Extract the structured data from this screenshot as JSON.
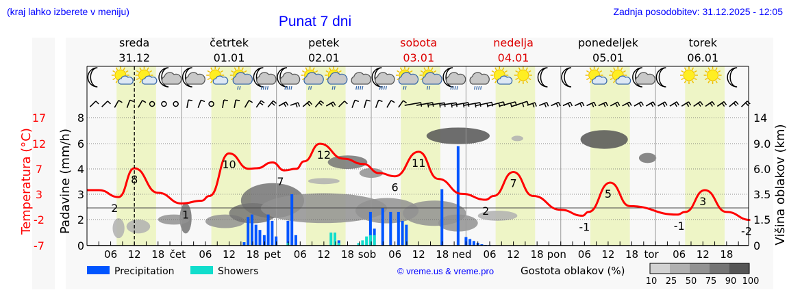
{
  "header": {
    "location_hint": "(kraj lahko izberete v meniju)",
    "title": "Punat 7 dni",
    "last_update": "Zadnja posodobitev: 31.12.2025 - 12:05"
  },
  "days": [
    {
      "name": "sreda",
      "date": "31.12",
      "weekend": false,
      "abbr": ""
    },
    {
      "name": "četrtek",
      "date": "01.01",
      "weekend": false,
      "abbr": "čet"
    },
    {
      "name": "petek",
      "date": "02.01",
      "weekend": false,
      "abbr": "pet"
    },
    {
      "name": "sobota",
      "date": "03.01",
      "weekend": true,
      "abbr": "sob"
    },
    {
      "name": "nedelja",
      "date": "04.01",
      "weekend": true,
      "abbr": "ned"
    },
    {
      "name": "ponedeljek",
      "date": "05.01",
      "weekend": false,
      "abbr": "pon"
    },
    {
      "name": "torek",
      "date": "06.01",
      "weekend": false,
      "abbr": "tor"
    }
  ],
  "hour_ticks": [
    "06",
    "12",
    "18"
  ],
  "icons": [
    "moon",
    "sun-cloud",
    "sun-cloud",
    "moon-cloud",
    "moon-cloud",
    "sun-cloud",
    "sun-cloud-rain",
    "moon-cloud-rain",
    "moon-cloud-rain",
    "sun-cloud-rain",
    "sun-cloud-rain",
    "cloud-rain",
    "moon-cloud-rain",
    "sun-cloud-rain",
    "sun-cloud-rain",
    "moon-cloud-rain",
    "cloud-sleet",
    "sun-cloud",
    "sun",
    "moon",
    "moon",
    "sun-cloud",
    "sun-cloud",
    "moon-cloud",
    "moon",
    "sun",
    "sun",
    "moon"
  ],
  "wind": [
    [
      45,
      10
    ],
    [
      45,
      10
    ],
    [
      30,
      10
    ],
    [
      20,
      10
    ],
    [
      30,
      5
    ],
    [
      0,
      0
    ],
    [
      0,
      0
    ],
    [
      0,
      0
    ],
    [
      10,
      10
    ],
    [
      20,
      5
    ],
    [
      0,
      0
    ],
    [
      10,
      10
    ],
    [
      10,
      10
    ],
    [
      30,
      10
    ],
    [
      35,
      15
    ],
    [
      40,
      15
    ],
    [
      60,
      15
    ],
    [
      70,
      15
    ],
    [
      50,
      15
    ],
    [
      40,
      15
    ],
    [
      60,
      15
    ],
    [
      45,
      10
    ],
    [
      20,
      10
    ],
    [
      15,
      10
    ],
    [
      20,
      10
    ],
    [
      30,
      10
    ],
    [
      35,
      10
    ],
    [
      80,
      10
    ],
    [
      80,
      15
    ],
    [
      82,
      15
    ],
    [
      82,
      15
    ],
    [
      80,
      15
    ],
    [
      80,
      15
    ],
    [
      78,
      15
    ],
    [
      75,
      15
    ],
    [
      75,
      15
    ],
    [
      72,
      15
    ],
    [
      70,
      15
    ],
    [
      68,
      15
    ],
    [
      65,
      15
    ],
    [
      65,
      15
    ],
    [
      65,
      15
    ],
    [
      65,
      15
    ],
    [
      65,
      15
    ],
    [
      62,
      15
    ],
    [
      62,
      15
    ],
    [
      60,
      15
    ],
    [
      60,
      15
    ],
    [
      60,
      15
    ],
    [
      58,
      15
    ],
    [
      58,
      15
    ],
    [
      55,
      15
    ],
    [
      55,
      15
    ],
    [
      55,
      15
    ],
    [
      50,
      15
    ],
    [
      45,
      15
    ]
  ],
  "current_time_hour": 12,
  "axes": {
    "temp_label": "Temperatura (°C)",
    "temp_ticks": [
      "17",
      "12",
      "7",
      "3",
      "-2",
      "-7"
    ],
    "precip_label": "Padavine (mm/h)",
    "precip_ticks": [
      "8",
      "6",
      "4",
      "3",
      "2",
      "0"
    ],
    "cloud_label": "Višina oblakov (km)",
    "cloud_ticks": [
      "14",
      "9.0",
      "6.0",
      "3.5",
      "1.5",
      "0"
    ]
  },
  "legend": {
    "precipitation": "Precipitation",
    "showers": "Showers",
    "copyright": "© vreme.us & vreme.pro",
    "cloud_density": "Gostota oblakov (%)",
    "density_levels": [
      "10",
      "25",
      "50",
      "75",
      "90",
      "100"
    ]
  },
  "colors": {
    "temperature": "#ff0000",
    "precipitation": "#0055ff",
    "showers": "#11ddcc",
    "daylight": "#eef5c6",
    "density": [
      "#d2d2d2",
      "#b0b0b0",
      "#929292",
      "#747474",
      "#555555"
    ]
  },
  "chart_data": {
    "type": "line",
    "x_unit": "hours from 31.12 00:00",
    "xlim": [
      0,
      168
    ],
    "temperature": {
      "h": [
        0,
        3,
        8,
        12,
        18,
        24,
        29,
        31,
        36,
        41,
        43,
        47,
        50,
        53,
        55,
        59,
        65,
        70,
        74,
        78,
        84,
        89,
        95,
        101,
        103,
        108,
        113,
        120,
        125.5,
        127,
        132.5,
        137.5,
        149.5,
        151.5,
        156.5,
        162,
        168
      ],
      "t": [
        3.4,
        3.4,
        2.1,
        7.5,
        2.9,
        0.9,
        1.4,
        2.3,
        10.3,
        7.4,
        7.5,
        8.6,
        7.1,
        7.4,
        8.8,
        12.1,
        9.3,
        8.3,
        6.6,
        6.0,
        10.6,
        5.5,
        2.7,
        1.6,
        2.3,
        6.8,
        2.3,
        -0.3,
        -1.4,
        -0.7,
        4.8,
        0.4,
        -1.2,
        -0.7,
        3.4,
        -0.7,
        -2.2
      ],
      "labels": [
        {
          "h": 7,
          "v": "2"
        },
        {
          "h": 12,
          "v": "8"
        },
        {
          "h": 25,
          "v": "1"
        },
        {
          "h": 36,
          "v": "10"
        },
        {
          "h": 49,
          "v": "7"
        },
        {
          "h": 60,
          "v": "12"
        },
        {
          "h": 78,
          "v": "6"
        },
        {
          "h": 84,
          "v": "11"
        },
        {
          "h": 101,
          "v": "2"
        },
        {
          "h": 108,
          "v": "7"
        },
        {
          "h": 126,
          "v": "-1"
        },
        {
          "h": 132,
          "v": "5"
        },
        {
          "h": 150,
          "v": "-1"
        },
        {
          "h": 156,
          "v": "3"
        },
        {
          "h": 168,
          "v": "-2"
        }
      ]
    },
    "precipitation": [
      [
        39.8,
        0.26
      ],
      [
        40.8,
        2.1
      ],
      [
        41.8,
        2.2
      ],
      [
        42.8,
        1.6
      ],
      [
        43.8,
        1.2
      ],
      [
        44.9,
        0.8
      ],
      [
        45.9,
        2.2
      ],
      [
        46.9,
        1.9
      ],
      [
        47.9,
        0.7
      ],
      [
        50.9,
        1.9
      ],
      [
        51.9,
        3.0
      ],
      [
        52.9,
        0.8
      ],
      [
        63.8,
        0.4
      ],
      [
        71.8,
        2.3
      ],
      [
        72.8,
        1.3
      ],
      [
        74.9,
        2.45
      ],
      [
        76.9,
        2.3
      ],
      [
        78.9,
        2.3
      ],
      [
        79.9,
        1.9
      ],
      [
        80.9,
        1.6
      ],
      [
        89.9,
        3.2
      ],
      [
        94,
        5.8
      ],
      [
        96,
        0.65
      ],
      [
        97,
        0.5
      ],
      [
        98,
        0.35
      ],
      [
        99,
        0.2
      ],
      [
        100,
        0.1
      ],
      [
        101,
        0.05
      ],
      [
        102,
        0.05
      ]
    ],
    "showers": [
      [
        50.9,
        0.2
      ],
      [
        61.8,
        1.0
      ],
      [
        62.8,
        1.0
      ],
      [
        63.8,
        0.2
      ],
      [
        68.8,
        0.2
      ],
      [
        69.8,
        0.4
      ],
      [
        70.8,
        0.7
      ],
      [
        71.8,
        0.8
      ],
      [
        72.8,
        0.8
      ]
    ],
    "clouds": [
      {
        "h": 8,
        "km": 1.0,
        "dh": 1.5,
        "dkm": 0.6,
        "d": 25
      },
      {
        "h": 13,
        "km": 1.1,
        "dh": 3,
        "dkm": 0.4,
        "d": 25
      },
      {
        "h": 25,
        "km": 1.6,
        "dh": 1.5,
        "dkm": 1.2,
        "d": 75
      },
      {
        "h": 22,
        "km": 1.5,
        "dh": 4,
        "dkm": 0.4,
        "d": 50
      },
      {
        "h": 35,
        "km": 1.4,
        "dh": 5,
        "dkm": 0.5,
        "d": 50
      },
      {
        "h": 47,
        "km": 3.0,
        "dh": 8,
        "dkm": 1.6,
        "d": 75
      },
      {
        "h": 42,
        "km": 2.0,
        "dh": 6,
        "dkm": 0.8,
        "d": 75
      },
      {
        "h": 60,
        "km": 2.4,
        "dh": 16,
        "dkm": 1.2,
        "d": 50
      },
      {
        "h": 76,
        "km": 2.2,
        "dh": 8,
        "dkm": 1.0,
        "d": 50
      },
      {
        "h": 60,
        "km": 4.8,
        "dh": 4,
        "dkm": 0.3,
        "d": 25
      },
      {
        "h": 66,
        "km": 6.8,
        "dh": 5,
        "dkm": 0.8,
        "d": 75
      },
      {
        "h": 72,
        "km": 5.6,
        "dh": 3,
        "dkm": 0.5,
        "d": 50
      },
      {
        "h": 88,
        "km": 2.0,
        "dh": 8,
        "dkm": 1.0,
        "d": 50
      },
      {
        "h": 94,
        "km": 1.3,
        "dh": 5,
        "dkm": 0.6,
        "d": 50
      },
      {
        "h": 104,
        "km": 1.8,
        "dh": 5,
        "dkm": 0.4,
        "d": 25
      },
      {
        "h": 94,
        "km": 10.5,
        "dh": 8,
        "dkm": 1.6,
        "d": 90
      },
      {
        "h": 109,
        "km": 10.0,
        "dh": 1.5,
        "dkm": 0.3,
        "d": 25
      },
      {
        "h": 131,
        "km": 9.8,
        "dh": 6,
        "dkm": 1.8,
        "d": 90
      },
      {
        "h": 142,
        "km": 7.3,
        "dh": 2.2,
        "dkm": 0.6,
        "d": 75
      }
    ]
  }
}
